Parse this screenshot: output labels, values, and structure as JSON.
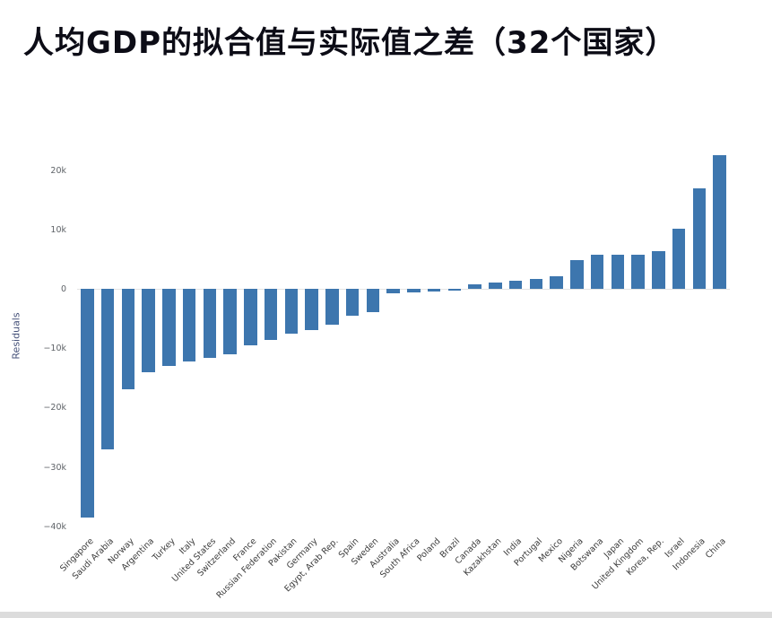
{
  "title": "人均GDP的拟合值与实际值之差（32个国家）",
  "chart_data": {
    "type": "bar",
    "title": "人均GDP的拟合值与实际值之差（32个国家）",
    "xlabel": "",
    "ylabel": "Residuals",
    "ylim": [
      -40500,
      26000
    ],
    "grid": false,
    "legend": "none",
    "bar_color": "#3d76ae",
    "yticks": [
      {
        "value": 20000,
        "label": "20k"
      },
      {
        "value": 10000,
        "label": "10k"
      },
      {
        "value": 0,
        "label": "0"
      },
      {
        "value": -10000,
        "label": "−10k"
      },
      {
        "value": -20000,
        "label": "−20k"
      },
      {
        "value": -30000,
        "label": "−30k"
      },
      {
        "value": -40000,
        "label": "−40k"
      }
    ],
    "categories": [
      "Singapore",
      "Saudi Arabia",
      "Norway",
      "Argentina",
      "Turkey",
      "Italy",
      "United States",
      "Switzerland",
      "France",
      "Russian Federation",
      "Pakistan",
      "Germany",
      "Egypt, Arab Rep.",
      "Spain",
      "Sweden",
      "Australia",
      "South Africa",
      "Poland",
      "Brazil",
      "Canada",
      "Kazakhstan",
      "India",
      "Portugal",
      "Mexico",
      "Nigeria",
      "Botswana",
      "Japan",
      "United Kingdom",
      "Korea, Rep.",
      "Israel",
      "Indonesia",
      "China"
    ],
    "values": [
      -38500,
      -27000,
      -17000,
      -14000,
      -13000,
      -12200,
      -11600,
      -11000,
      -9500,
      -8600,
      -7600,
      -7000,
      -6000,
      -4600,
      -4000,
      -700,
      -600,
      -450,
      -300,
      700,
      1100,
      1300,
      1600,
      2100,
      4800,
      5700,
      5800,
      5800,
      6400,
      10200,
      17000,
      22500
    ]
  }
}
